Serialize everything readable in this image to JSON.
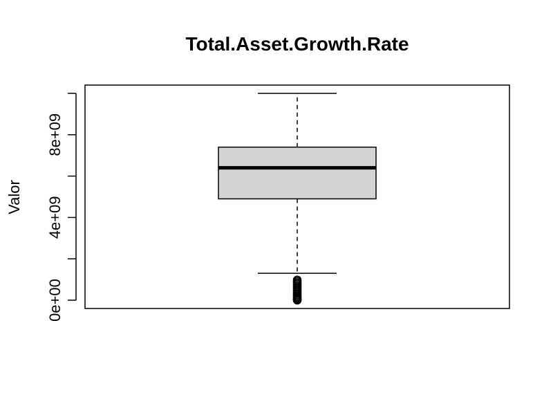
{
  "chart_data": {
    "type": "boxplot",
    "title": "Total.Asset.Growth.Rate",
    "ylabel": "Valor",
    "xlabel": "",
    "ylim": [
      -400000000,
      10400000000
    ],
    "yticks": [
      0,
      2000000000,
      4000000000,
      6000000000,
      8000000000,
      10000000000
    ],
    "ytick_labels": [
      "0e+00",
      "",
      "4e+09",
      "",
      "8e+09",
      ""
    ],
    "box": {
      "whisker_low": 1300000000,
      "q1": 4900000000,
      "median": 6400000000,
      "q3": 7400000000,
      "whisker_high": 10000000000,
      "fill": "#d3d3d3"
    },
    "outliers": [
      0,
      10000000,
      30000000,
      60000000,
      100000000,
      150000000,
      200000000,
      260000000,
      320000000,
      380000000,
      440000000,
      500000000,
      560000000,
      620000000,
      680000000,
      740000000,
      800000000,
      860000000,
      920000000,
      980000000
    ]
  }
}
